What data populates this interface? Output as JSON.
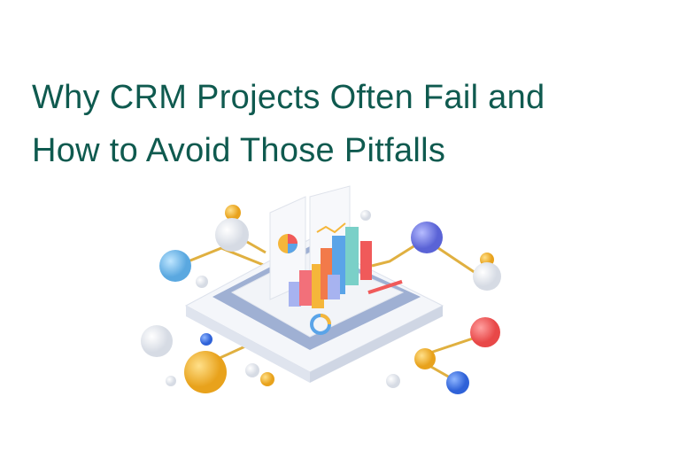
{
  "article": {
    "title_line1": "Why CRM Projects Often Fail and",
    "title_line2": "How to Avoid Those Pitfalls"
  },
  "colors": {
    "title": "#0f5a4f",
    "bar_colors": [
      "#f2707a",
      "#f5b63a",
      "#5aa4e8",
      "#7ad0c8",
      "#f05a5a",
      "#a7b3f0"
    ],
    "platform": "#eef1f6",
    "platform_border": "#9fb0d3"
  },
  "illustration": {
    "subject": "isometric dashboard with bar chart and connected nodes",
    "icons": [
      "bar-chart-icon",
      "pie-chart-icon",
      "donut-chart-icon",
      "node-sphere-icon"
    ]
  }
}
